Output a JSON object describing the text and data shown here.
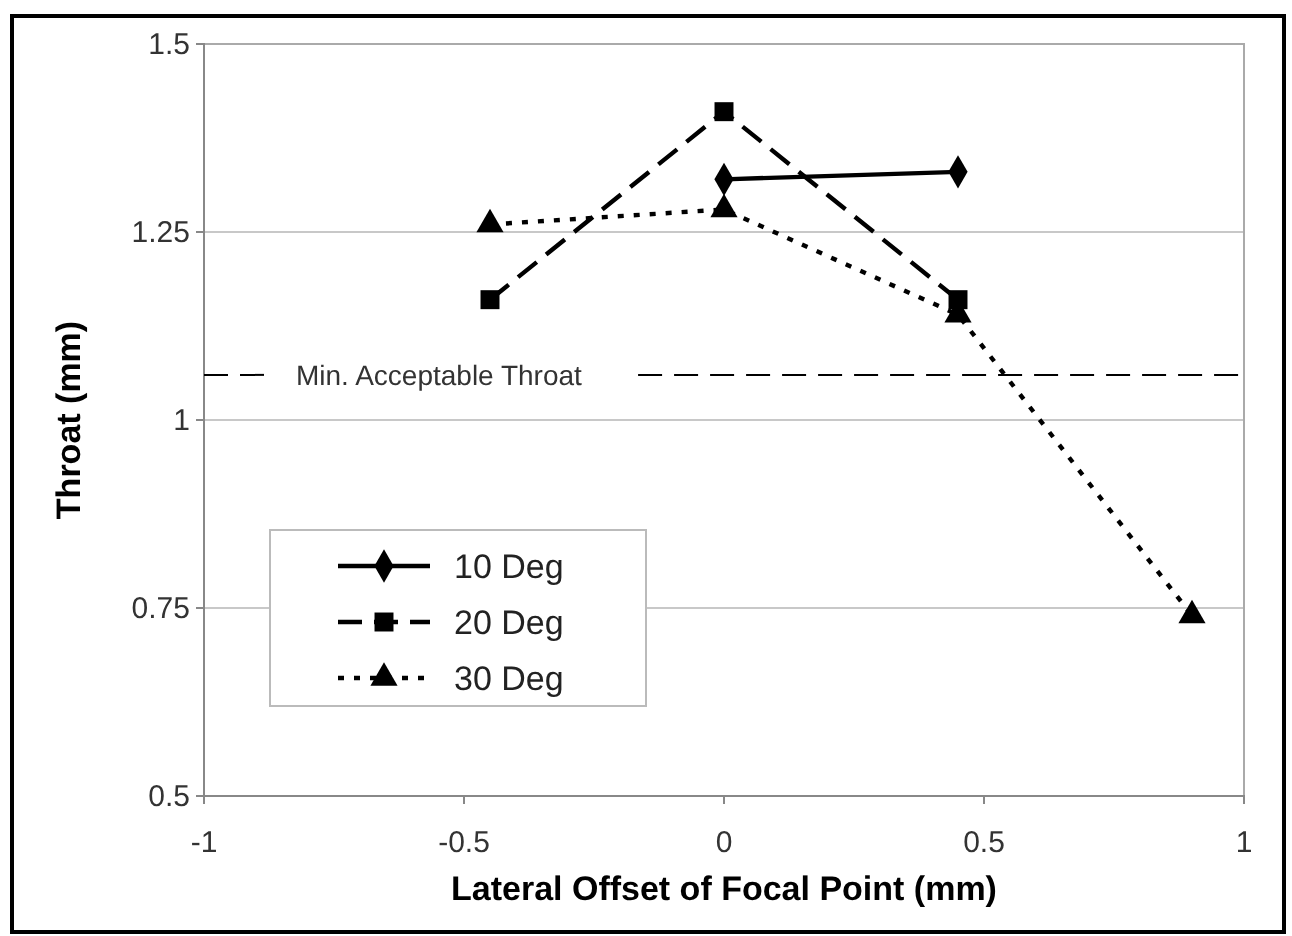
{
  "chart_data": {
    "type": "line",
    "xlabel": "Lateral Offset of Focal Point (mm)",
    "ylabel": "Throat (mm)",
    "xlim": [
      -1,
      1
    ],
    "xticks": [
      -1,
      -0.5,
      0,
      0.5,
      1
    ],
    "ylim": [
      0.5,
      1.5
    ],
    "yticks": [
      0.5,
      0.75,
      1,
      1.25,
      1.5
    ],
    "grid": "y",
    "legend": "bottom left",
    "ref_lines": [
      {
        "axis": "y",
        "value": 1.06,
        "label": "Min. Acceptable Throat",
        "line_style": "dashed",
        "color": "#000000"
      }
    ],
    "series": [
      {
        "name": "10 Deg",
        "color": "#000000",
        "marker": "diamond",
        "line_style": "solid",
        "x": [
          0,
          0.45
        ],
        "values": [
          1.32,
          1.33
        ]
      },
      {
        "name": "20 Deg",
        "color": "#000000",
        "marker": "square",
        "line_style": "dashed",
        "x": [
          -0.45,
          0,
          0.45
        ],
        "values": [
          1.16,
          1.41,
          1.16
        ]
      },
      {
        "name": "30 Deg",
        "color": "#000000",
        "marker": "triangle",
        "line_style": "dotted",
        "x": [
          -0.45,
          0,
          0.45,
          0.9
        ],
        "values": [
          1.26,
          1.28,
          1.14,
          0.74
        ]
      }
    ]
  }
}
